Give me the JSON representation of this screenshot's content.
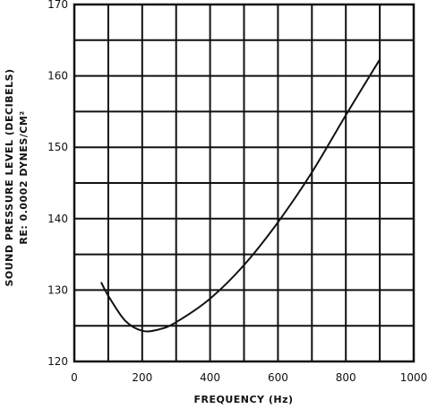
{
  "chart_data": {
    "type": "line",
    "title": "",
    "xlabel": "FREQUENCY (Hz)",
    "ylabel_line1": "SOUND PRESSURE LEVEL (DECIBELS)",
    "ylabel_line2": "RE: 0.0002 DYNES/CM²",
    "xlim": [
      0,
      1000
    ],
    "ylim": [
      120,
      170
    ],
    "x_ticks": [
      0,
      200,
      400,
      600,
      800,
      1000
    ],
    "y_ticks": [
      120,
      130,
      140,
      150,
      160,
      170
    ],
    "x_grid_step": 100,
    "y_grid_step": 5,
    "grid": true,
    "series": [
      {
        "x": [
          80,
          100,
          150,
          200,
          250,
          300,
          400,
          500,
          600,
          700,
          800,
          900
        ],
        "y": [
          131,
          129.2,
          125.7,
          124.3,
          124.5,
          125.5,
          128.8,
          133.5,
          139.5,
          146.5,
          154.5,
          162.3
        ]
      }
    ]
  }
}
